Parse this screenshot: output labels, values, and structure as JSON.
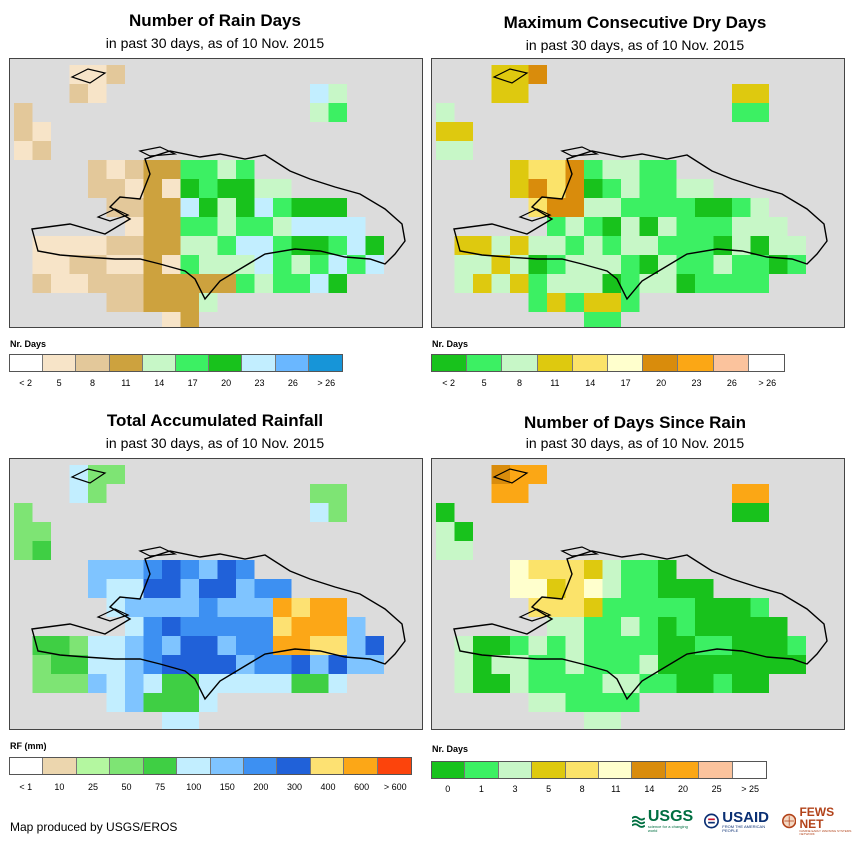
{
  "credit": "Map produced by USGS/EROS",
  "logos": {
    "usgs": {
      "text": "USGS",
      "tagline": "science for a changing world",
      "color": "#006f41"
    },
    "usaid": {
      "text": "USAID",
      "tagline": "FROM THE AMERICAN PEOPLE",
      "color": "#0a2f73",
      "accent": "#c8102e"
    },
    "fews": {
      "text": "FEWS NET",
      "tagline": "FAMINE EARLY WARNING SYSTEMS NETWORK",
      "color": "#b2431a"
    }
  },
  "panels": [
    {
      "id": "rain-days",
      "title": "Number of Rain Days",
      "subtitle": "in past 30 days, as of 10 Nov. 2015",
      "legend": {
        "title": "Nr. Days",
        "colors": [
          "#ffffff",
          "#f7e4c8",
          "#e3c89a",
          "#cda23e",
          "#c7f7c7",
          "#3cf063",
          "#18c21c",
          "#c2eeff",
          "#6ab7ff",
          "#1795d8"
        ],
        "ticks": [
          "< 2",
          "5",
          "8",
          "11",
          "14",
          "17",
          "20",
          "23",
          "26",
          "> 26"
        ]
      }
    },
    {
      "id": "max-dry-days",
      "title": "Maximum Consecutive Dry Days",
      "subtitle": "in past 30 days, as of 10 Nov. 2015",
      "legend": {
        "title": "Nr. Days",
        "colors": [
          "#18c21c",
          "#3cf063",
          "#c7f7c7",
          "#dec90f",
          "#fbe36a",
          "#ffffcd",
          "#d98c0c",
          "#fba715",
          "#fbc39d",
          "#ffffff"
        ],
        "ticks": [
          "< 2",
          "5",
          "8",
          "11",
          "14",
          "17",
          "20",
          "23",
          "26",
          "> 26"
        ]
      }
    },
    {
      "id": "rainfall",
      "title": "Total Accumulated Rainfall",
      "subtitle": "in past 30 days, as of 10 Nov. 2015",
      "legend": {
        "title": "RF (mm)",
        "colors": [
          "#ffffff",
          "#ecd6ae",
          "#b4f7a0",
          "#7ee474",
          "#3fcf44",
          "#c2eeff",
          "#7fc4ff",
          "#3d90f2",
          "#2061d9",
          "#fde172",
          "#fca717",
          "#fc440c"
        ],
        "ticks": [
          "< 1",
          "10",
          "25",
          "50",
          "75",
          "100",
          "150",
          "200",
          "300",
          "400",
          "600",
          "> 600"
        ]
      }
    },
    {
      "id": "days-since-rain",
      "title": "Number of Days Since Rain",
      "subtitle": "in past 30 days, as of 10 Nov. 2015",
      "legend": {
        "title": "Nr. Days",
        "colors": [
          "#18c21c",
          "#3cf063",
          "#c7f7c7",
          "#dec90f",
          "#fbe36a",
          "#ffffcd",
          "#d98c0c",
          "#fba715",
          "#fbc39d",
          "#ffffff"
        ],
        "ticks": [
          "0",
          "1",
          "3",
          "5",
          "8",
          "11",
          "14",
          "20",
          "25",
          "> 25"
        ]
      }
    }
  ]
}
